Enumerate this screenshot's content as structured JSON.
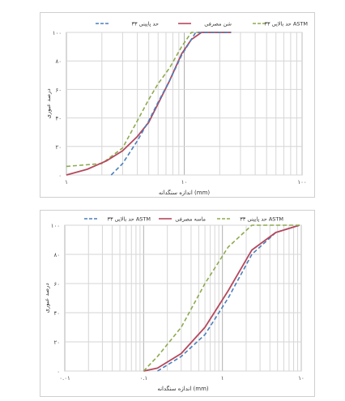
{
  "chart_data": [
    {
      "type": "line",
      "xscale": "log",
      "xlim": [
        1,
        100
      ],
      "ylim": [
        0,
        100
      ],
      "grid": true,
      "legend_position": "top",
      "xlabel": "اندازه سنگدانه (mm)",
      "ylabel": "درصد عبوری",
      "xticks": [
        {
          "v": 1,
          "label": "۱"
        },
        {
          "v": 10,
          "label": "۱۰"
        },
        {
          "v": 100,
          "label": "۱۰۰"
        }
      ],
      "yticks": [
        {
          "v": 0,
          "label": "۰"
        },
        {
          "v": 20,
          "label": "۲۰"
        },
        {
          "v": 40,
          "label": "۴۰"
        },
        {
          "v": 60,
          "label": "۶۰"
        },
        {
          "v": 80,
          "label": "۸۰"
        },
        {
          "v": 100,
          "label": "۱۰۰"
        }
      ],
      "series": [
        {
          "name": "حد بالایی ۳۳ ASTM",
          "color": "#8daa4f",
          "dash": true,
          "points": [
            [
              1.0,
              6
            ],
            [
              2.0,
              8
            ],
            [
              3.0,
              19
            ],
            [
              4.0,
              38
            ],
            [
              5.0,
              53
            ],
            [
              6.0,
              64
            ],
            [
              7.5,
              75
            ],
            [
              9.5,
              90
            ],
            [
              11.5,
              100
            ],
            [
              25.0,
              100
            ]
          ]
        },
        {
          "name": "شن مصرفی",
          "color": "#b5485d",
          "dash": false,
          "points": [
            [
              1.0,
              0
            ],
            [
              1.5,
              4
            ],
            [
              2.2,
              10
            ],
            [
              3.0,
              17
            ],
            [
              4.0,
              27
            ],
            [
              5.0,
              37
            ],
            [
              6.0,
              50
            ],
            [
              7.5,
              66
            ],
            [
              9.5,
              85
            ],
            [
              11.5,
              95
            ],
            [
              14.0,
              100
            ],
            [
              25.0,
              100
            ]
          ]
        },
        {
          "name": "حد پایینی ۳۳",
          "color": "#4a7fbc",
          "dash": true,
          "points": [
            [
              2.4,
              0
            ],
            [
              3.0,
              8
            ],
            [
              4.0,
              24
            ],
            [
              5.0,
              38
            ],
            [
              6.0,
              51
            ],
            [
              7.5,
              66
            ],
            [
              9.5,
              84
            ],
            [
              12.5,
              100
            ],
            [
              25.0,
              100
            ]
          ]
        }
      ]
    },
    {
      "type": "line",
      "xscale": "log",
      "xlim": [
        0.01,
        10
      ],
      "ylim": [
        0,
        100
      ],
      "grid": true,
      "legend_position": "top",
      "xlabel": "اندازه سنگدانه (mm)",
      "ylabel": "درصد عبوری",
      "xticks": [
        {
          "v": 0.01,
          "label": "۰.۰۱"
        },
        {
          "v": 0.1,
          "label": "۰.۱"
        },
        {
          "v": 1,
          "label": "۱"
        },
        {
          "v": 10,
          "label": "۱۰"
        }
      ],
      "yticks": [
        {
          "v": 0,
          "label": "۰"
        },
        {
          "v": 20,
          "label": "۲۰"
        },
        {
          "v": 40,
          "label": "۴۰"
        },
        {
          "v": 60,
          "label": "۶۰"
        },
        {
          "v": 80,
          "label": "۸۰"
        },
        {
          "v": 100,
          "label": "۱۰۰"
        }
      ],
      "series": [
        {
          "name": "حد بالایی ۳۳ ASTM",
          "color": "#4a7fbc",
          "dash": true,
          "points": [
            [
              0.15,
              0
            ],
            [
              0.3,
              10
            ],
            [
              0.6,
              25
            ],
            [
              1.18,
              50
            ],
            [
              2.36,
              80
            ],
            [
              4.75,
              95
            ],
            [
              9.5,
              100
            ]
          ]
        },
        {
          "name": "ماسه مصرفی",
          "color": "#b5485d",
          "dash": false,
          "points": [
            [
              0.1,
              0
            ],
            [
              0.15,
              2
            ],
            [
              0.3,
              12
            ],
            [
              0.6,
              30
            ],
            [
              1.18,
              55
            ],
            [
              2.36,
              83
            ],
            [
              4.75,
              95
            ],
            [
              9.5,
              100
            ]
          ]
        },
        {
          "name": "حد پایینی ۳۳ ASTM",
          "color": "#8daa4f",
          "dash": true,
          "points": [
            [
              0.1,
              0
            ],
            [
              0.15,
              10
            ],
            [
              0.3,
              30
            ],
            [
              0.6,
              60
            ],
            [
              1.18,
              85
            ],
            [
              2.36,
              100
            ],
            [
              9.5,
              100
            ]
          ]
        }
      ]
    }
  ]
}
